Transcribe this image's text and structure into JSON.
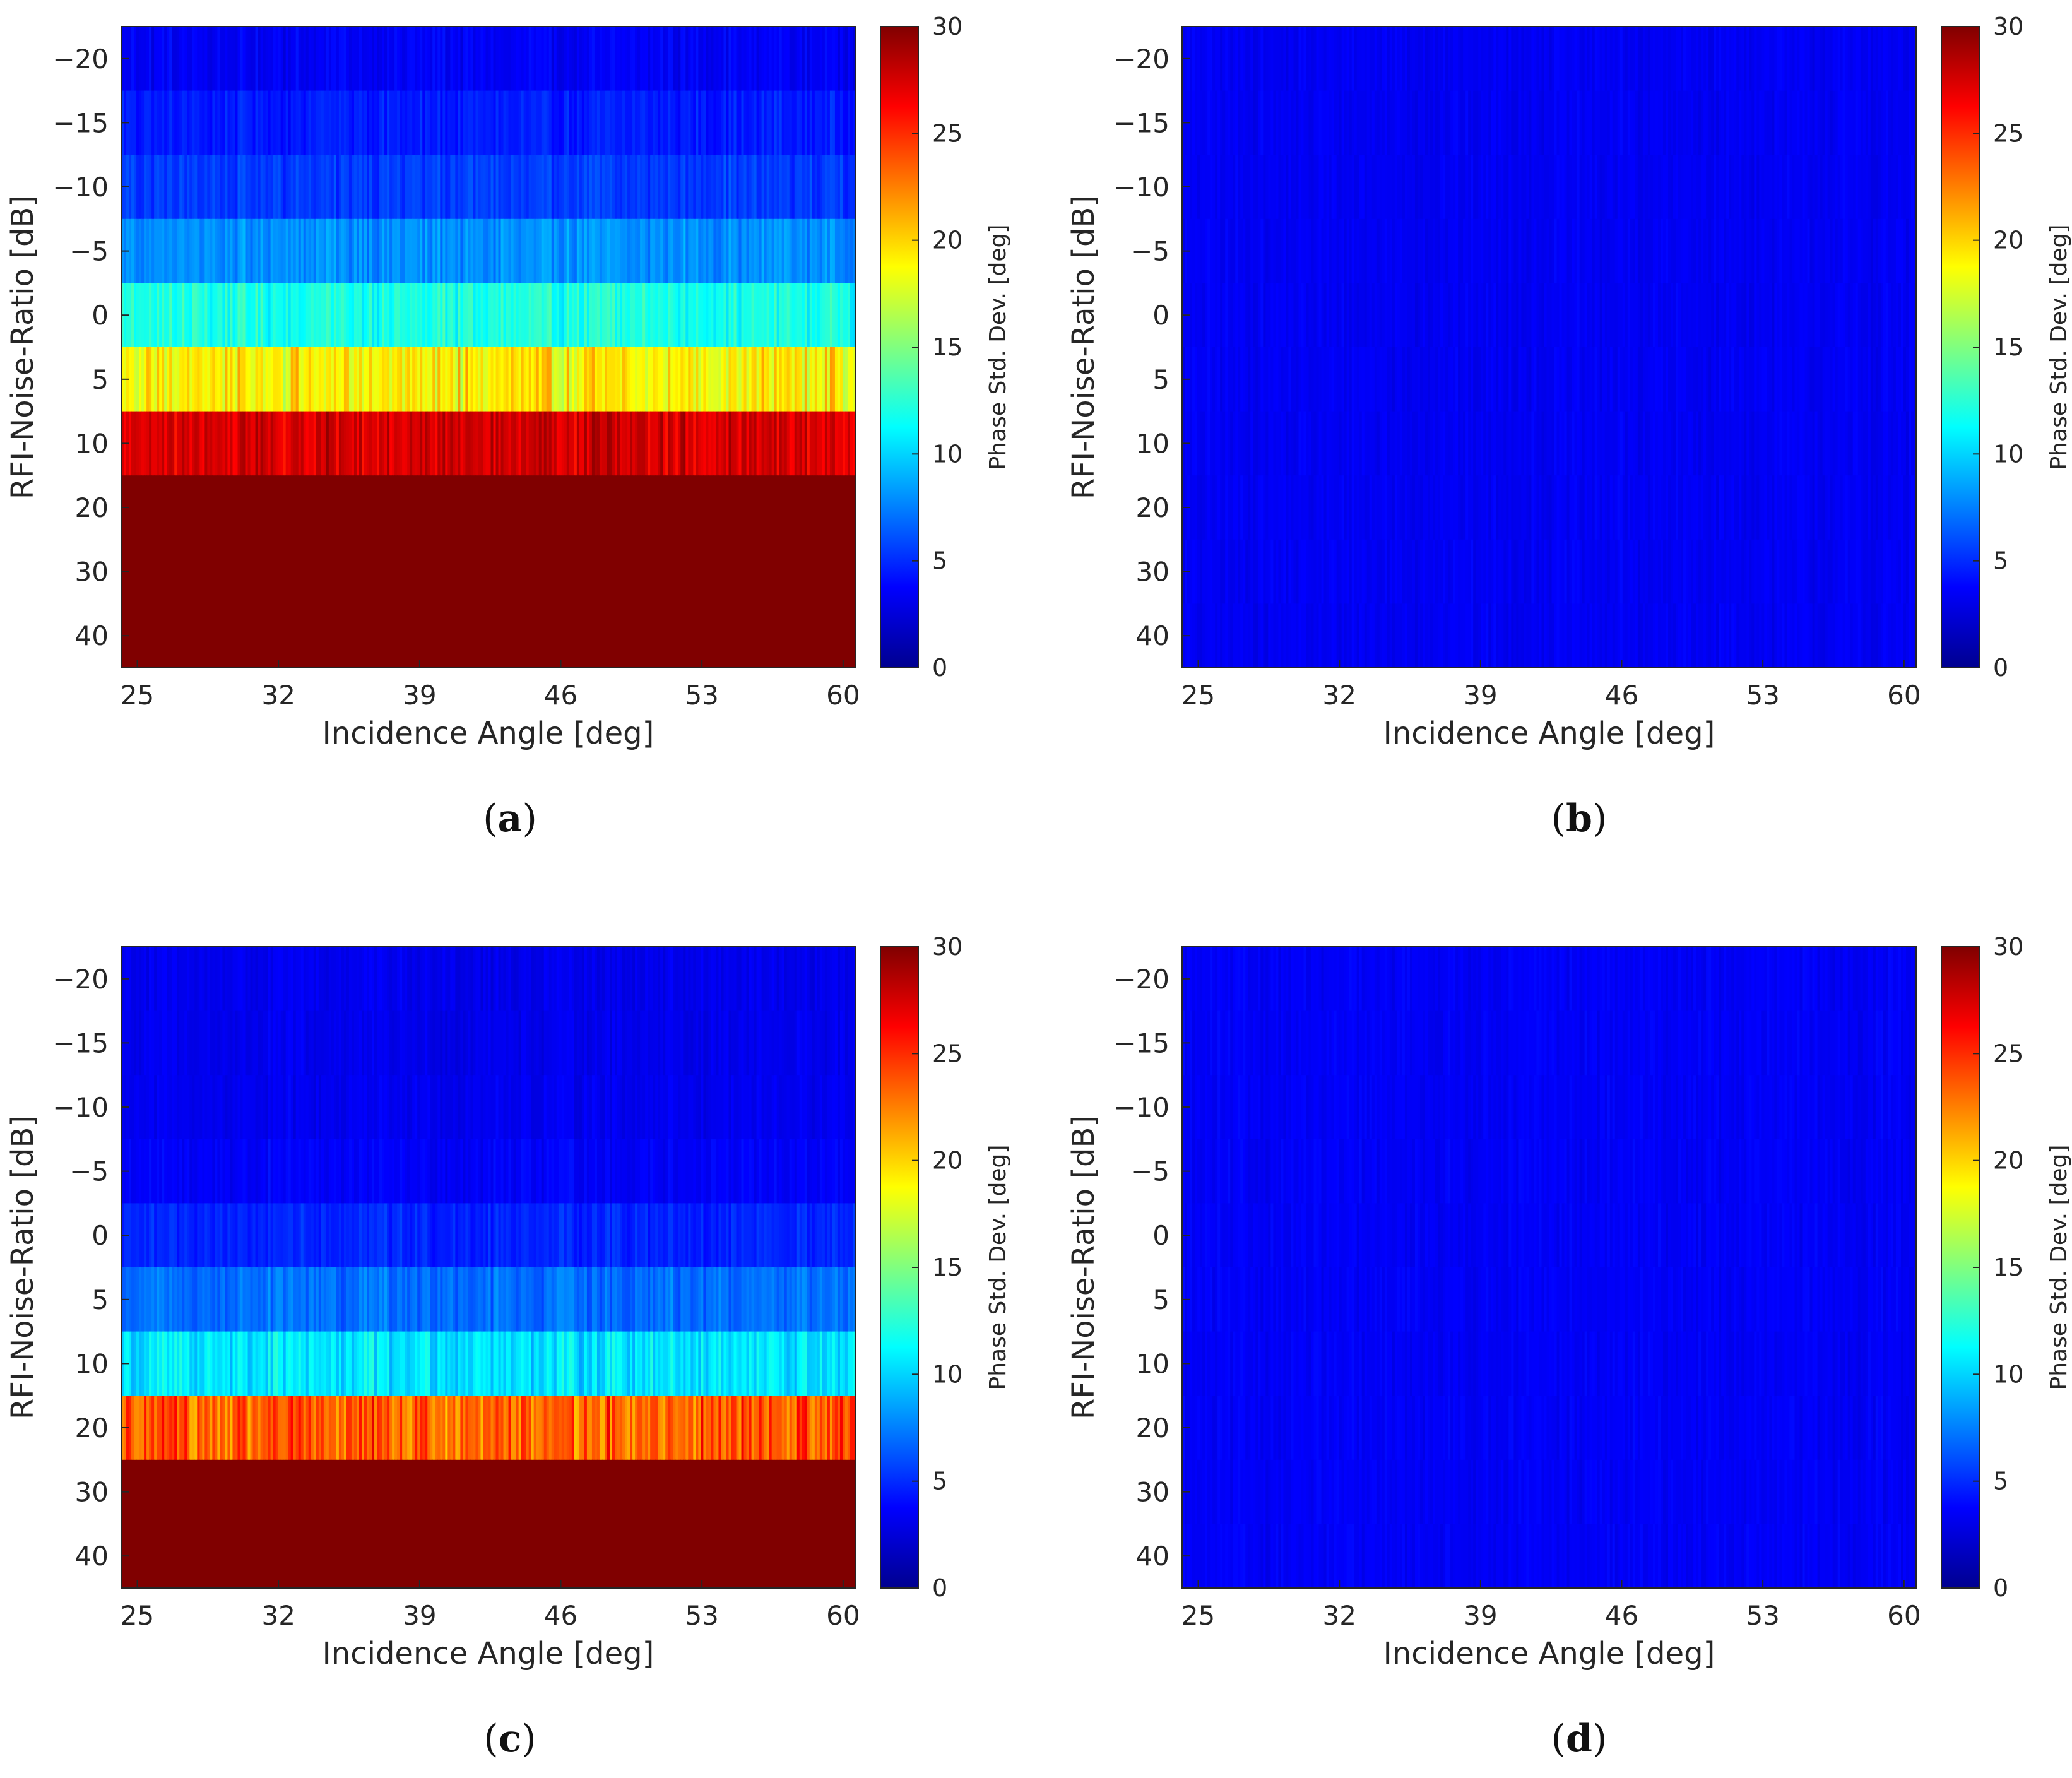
{
  "figure": {
    "panels": [
      {
        "id": "a",
        "caption_letter": "a"
      },
      {
        "id": "b",
        "caption_letter": "b"
      },
      {
        "id": "c",
        "caption_letter": "c"
      },
      {
        "id": "d",
        "caption_letter": "d"
      }
    ]
  },
  "chart_data": [
    {
      "type": "heatmap",
      "panel": "a",
      "xlabel": "Incidence Angle [deg]",
      "ylabel": "RFI-Noise-Ratio [dB]",
      "colorbar_label": "Phase Std. Dev. [deg]",
      "xlim": [
        24.2,
        60.6
      ],
      "x_ticks": [
        25,
        32,
        39,
        46,
        53,
        60
      ],
      "y_categories": [
        "-20",
        "-15",
        "-10",
        "-5",
        "0",
        "5",
        "10",
        "20",
        "30",
        "40"
      ],
      "clim": [
        0,
        30
      ],
      "colorbar_ticks": [
        0,
        5,
        10,
        15,
        20,
        25,
        30
      ],
      "row_mean_values": [
        3.5,
        4.5,
        5.5,
        8,
        12,
        19,
        27.5,
        30,
        30,
        30
      ],
      "row_variation": [
        0.8,
        0.9,
        1.0,
        1.2,
        1.6,
        2.5,
        1.8,
        0,
        0,
        0
      ]
    },
    {
      "type": "heatmap",
      "panel": "b",
      "xlabel": "Incidence Angle [deg]",
      "ylabel": "RFI-Noise-Ratio [dB]",
      "colorbar_label": "Phase Std. Dev. [deg]",
      "xlim": [
        24.2,
        60.6
      ],
      "x_ticks": [
        25,
        32,
        39,
        46,
        53,
        60
      ],
      "y_categories": [
        "-20",
        "-15",
        "-10",
        "-5",
        "0",
        "5",
        "10",
        "20",
        "30",
        "40"
      ],
      "clim": [
        0,
        30
      ],
      "colorbar_ticks": [
        0,
        5,
        10,
        15,
        20,
        25,
        30
      ],
      "row_mean_values": [
        3.4,
        3.4,
        3.4,
        3.4,
        3.4,
        3.4,
        3.4,
        3.4,
        3.4,
        3.4
      ],
      "row_variation": [
        0.5,
        0.5,
        0.5,
        0.5,
        0.5,
        0.5,
        0.5,
        0.5,
        0.5,
        0.5
      ]
    },
    {
      "type": "heatmap",
      "panel": "c",
      "xlabel": "Incidence Angle [deg]",
      "ylabel": "RFI-Noise-Ratio [dB]",
      "colorbar_label": "Phase Std. Dev. [deg]",
      "xlim": [
        24.2,
        60.6
      ],
      "x_ticks": [
        25,
        32,
        39,
        46,
        53,
        60
      ],
      "y_categories": [
        "-20",
        "-15",
        "-10",
        "-5",
        "0",
        "5",
        "10",
        "20",
        "30",
        "40"
      ],
      "clim": [
        0,
        30
      ],
      "colorbar_ticks": [
        0,
        5,
        10,
        15,
        20,
        25,
        30
      ],
      "row_mean_values": [
        3.2,
        3.2,
        3.3,
        3.6,
        4.8,
        7.0,
        10.5,
        23.5,
        30,
        30
      ],
      "row_variation": [
        0.6,
        0.6,
        0.6,
        0.7,
        0.9,
        1.2,
        1.8,
        3.0,
        0,
        0
      ]
    },
    {
      "type": "heatmap",
      "panel": "d",
      "xlabel": "Incidence Angle [deg]",
      "ylabel": "RFI-Noise-Ratio [dB]",
      "colorbar_label": "Phase Std. Dev. [deg]",
      "xlim": [
        24.2,
        60.6
      ],
      "x_ticks": [
        25,
        32,
        39,
        46,
        53,
        60
      ],
      "y_categories": [
        "-20",
        "-15",
        "-10",
        "-5",
        "0",
        "5",
        "10",
        "20",
        "30",
        "40"
      ],
      "clim": [
        0,
        30
      ],
      "colorbar_ticks": [
        0,
        5,
        10,
        15,
        20,
        25,
        30
      ],
      "row_mean_values": [
        3.5,
        3.5,
        3.5,
        3.5,
        3.5,
        3.5,
        3.5,
        3.5,
        3.5,
        3.5
      ],
      "row_variation": [
        0.5,
        0.5,
        0.5,
        0.5,
        0.5,
        0.5,
        0.5,
        0.5,
        0.5,
        0.5
      ]
    }
  ]
}
